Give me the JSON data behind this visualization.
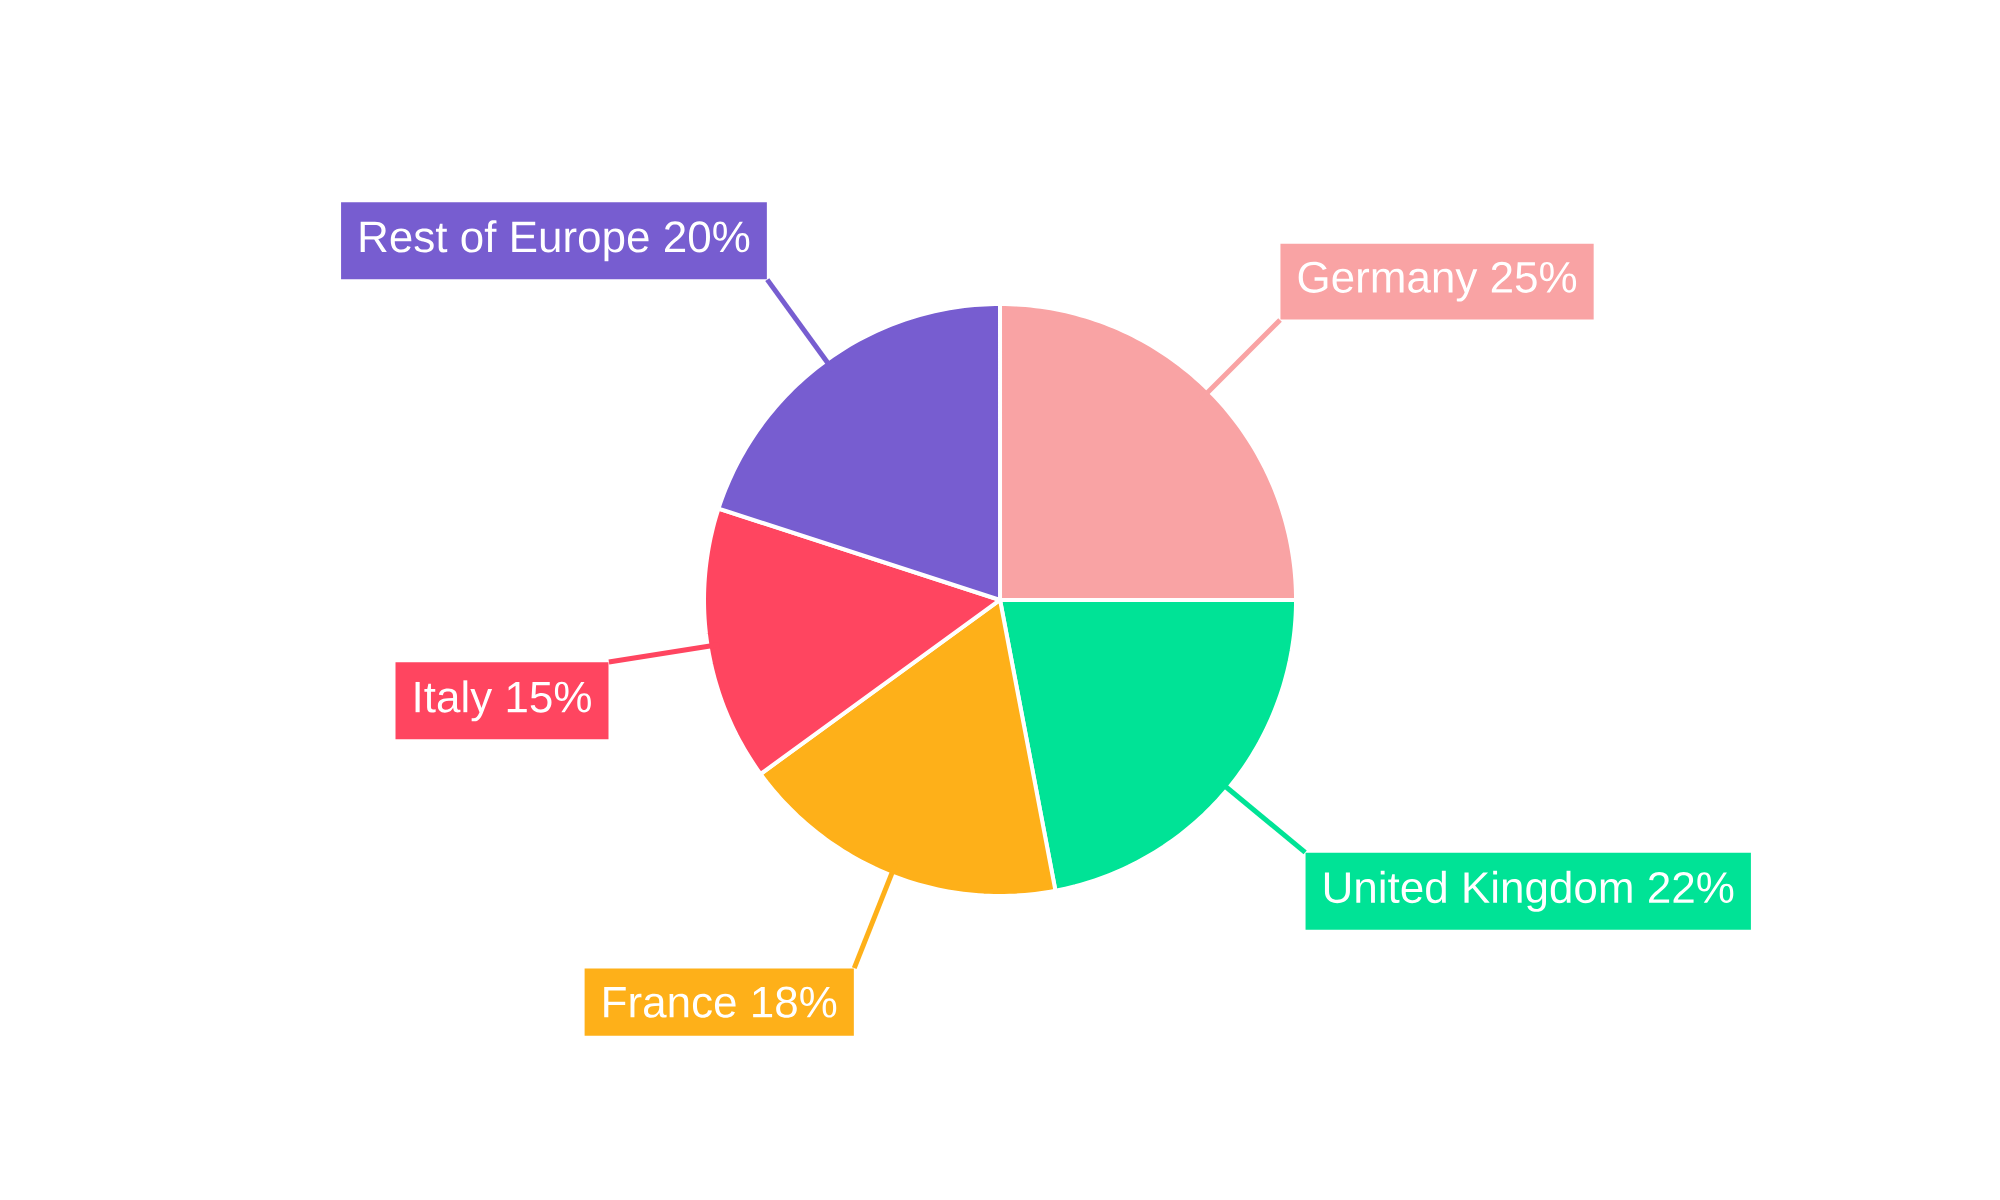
{
  "chart_data": {
    "type": "pie",
    "categories": [
      "Germany",
      "United Kingdom",
      "France",
      "Italy",
      "Rest of Europe"
    ],
    "values": [
      25,
      22,
      18,
      15,
      20
    ],
    "value_labels": [
      "25%",
      "22%",
      "18%",
      "15%",
      "20%"
    ],
    "colors": [
      "#f9a3a4",
      "#00e396",
      "#feb019",
      "#ff4560",
      "#775dd0"
    ]
  }
}
